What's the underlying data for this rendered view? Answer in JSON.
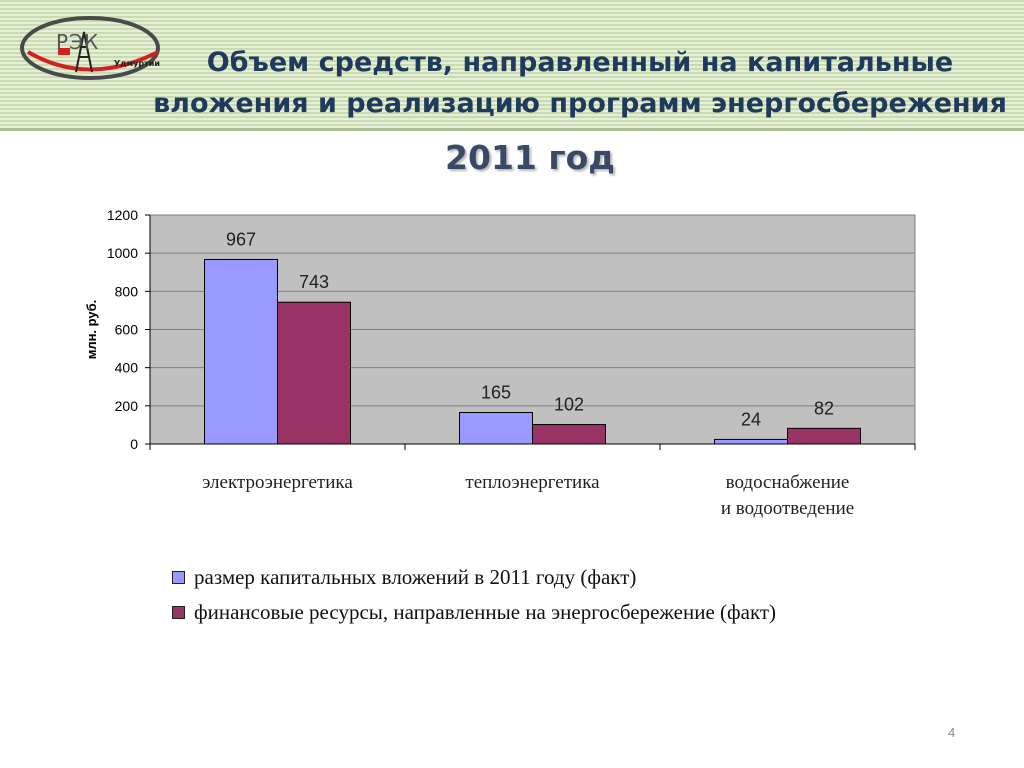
{
  "header": {
    "title": "Объем средств, направленный на капитальные вложения и реализацию программ  энергосбережения",
    "logo_text": "РЭК",
    "logo_sub": "Удмуртии"
  },
  "subtitle": "2011 год",
  "colors": {
    "series1": "#9999ff",
    "series2": "#993366",
    "plot_bg": "#c0c0c0",
    "title": "#1f3a5c"
  },
  "chart_data": {
    "type": "bar",
    "title": "",
    "xlabel": "",
    "ylabel": "млн. руб.",
    "ylim": [
      0,
      1200
    ],
    "yticks": [
      0,
      200,
      400,
      600,
      800,
      1000,
      1200
    ],
    "grid": true,
    "categories": [
      "электроэнергетика",
      "теплоэнергетика",
      "водоснабжение и водоотведение"
    ],
    "series": [
      {
        "name": "размер капитальных вложений в 2011 году (факт)",
        "values": [
          967,
          165,
          24
        ]
      },
      {
        "name": "финансовые ресурсы, направленные на энергосбережение (факт)",
        "values": [
          743,
          102,
          82
        ]
      }
    ],
    "legend": "bottom"
  },
  "page_number": "4"
}
